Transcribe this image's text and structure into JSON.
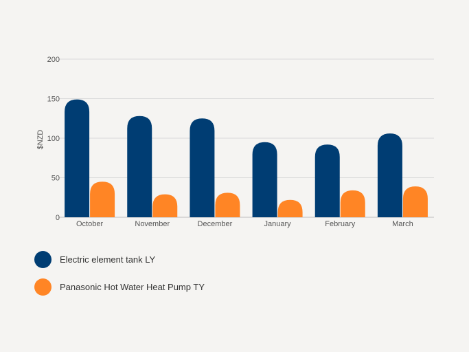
{
  "chart_data": {
    "type": "bar",
    "title": "",
    "xlabel": "",
    "ylabel": "$NZD",
    "ylim": [
      0,
      200
    ],
    "yticks": [
      0,
      50,
      100,
      150,
      200
    ],
    "grid": true,
    "legend_position": "bottom-left",
    "categories": [
      "October",
      "November",
      "December",
      "January",
      "February",
      "March"
    ],
    "series": [
      {
        "name": "Electric element tank LY",
        "color": "#003d73",
        "values": [
          149,
          128,
          125,
          95,
          92,
          106
        ]
      },
      {
        "name": "Panasonic Hot Water Heat Pump TY",
        "color": "#ff8525",
        "values": [
          45,
          29,
          31,
          22,
          34,
          39
        ]
      }
    ]
  }
}
